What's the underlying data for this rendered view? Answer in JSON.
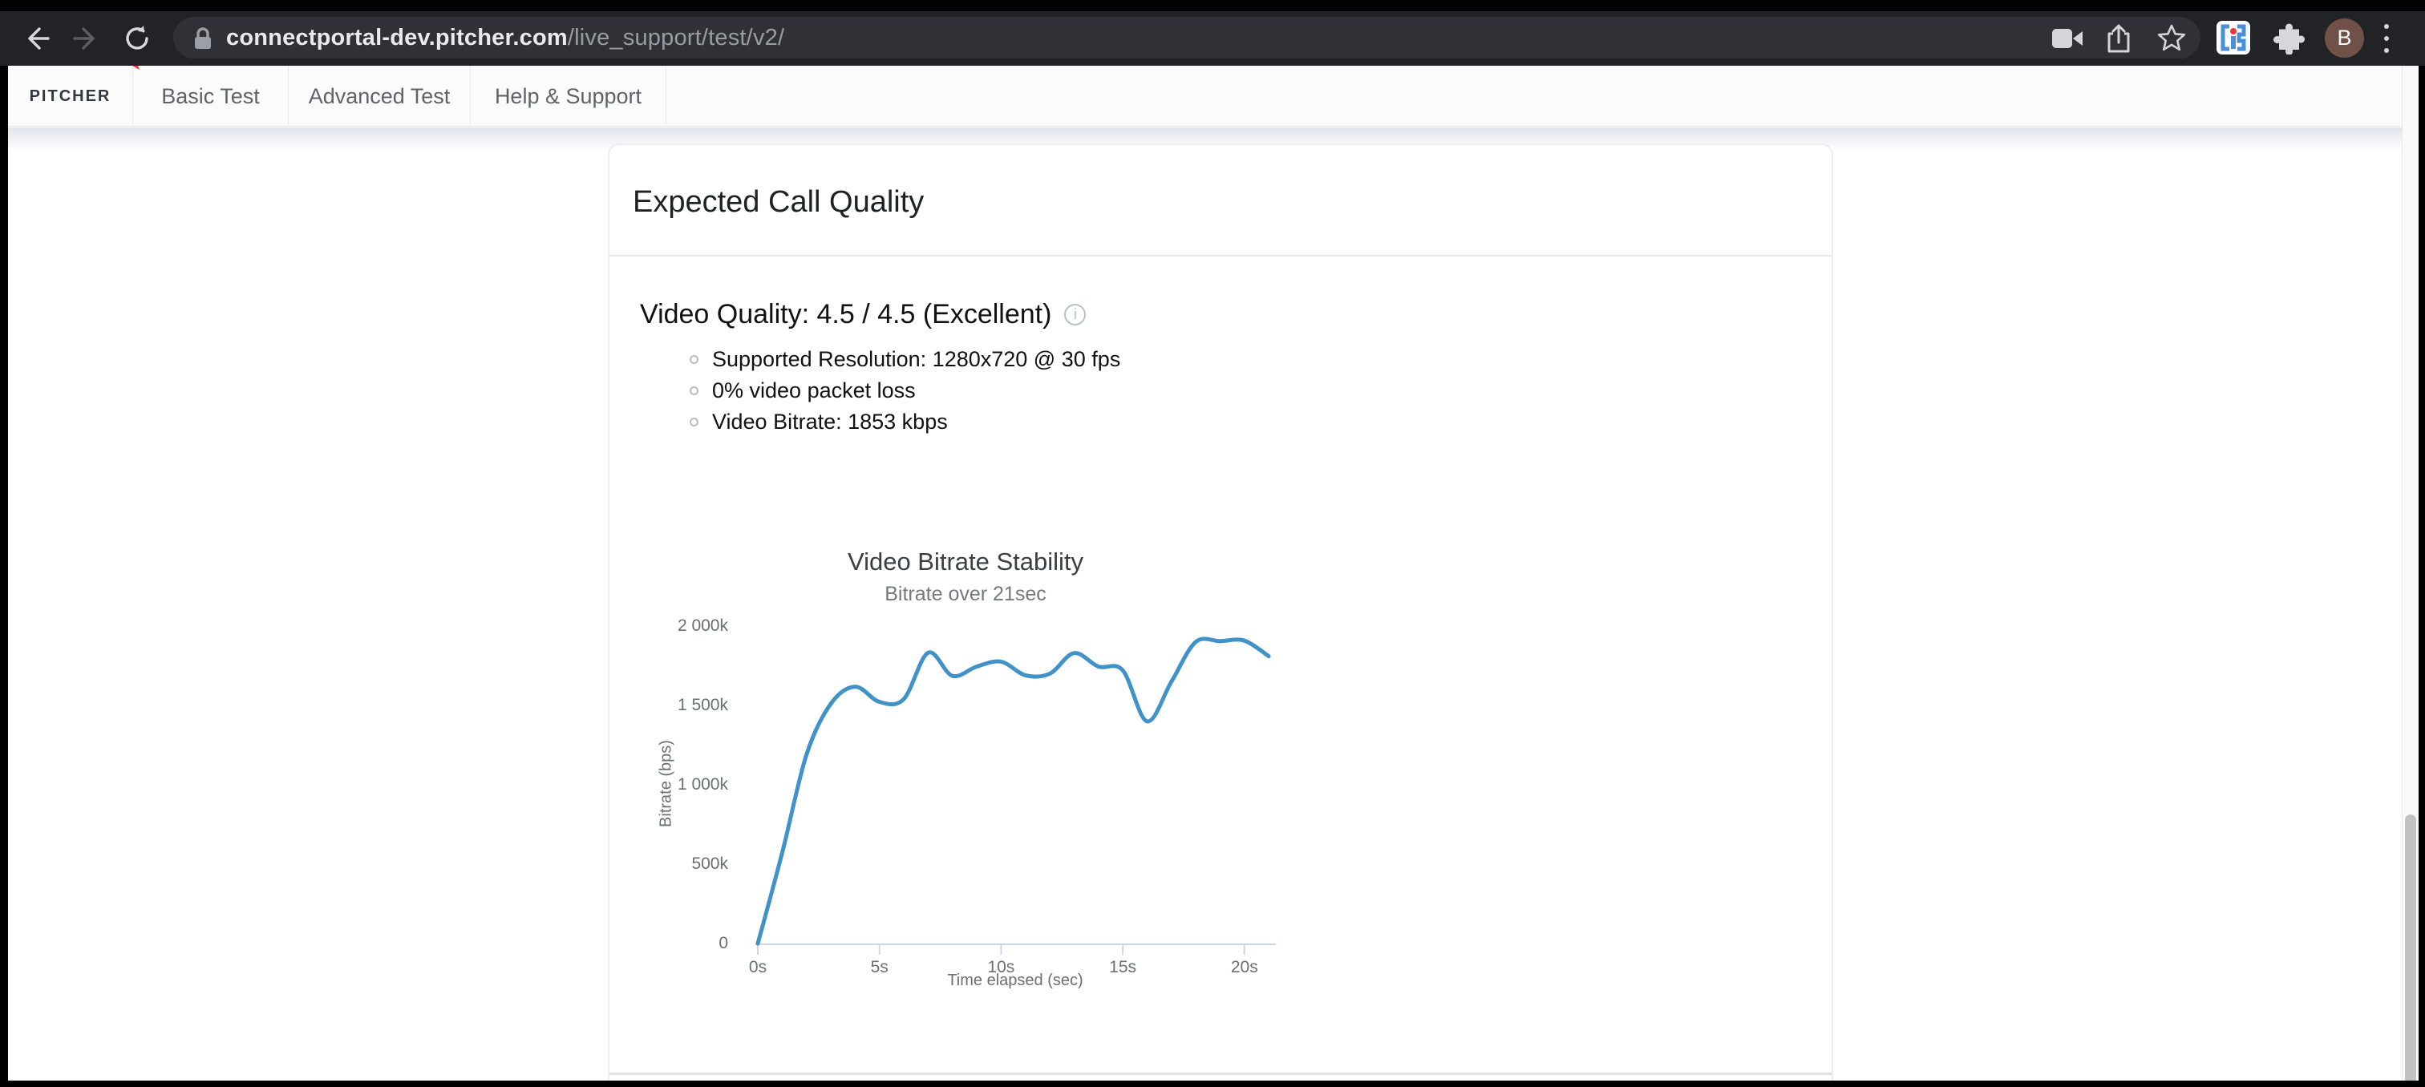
{
  "browser": {
    "url_domain": "connectportal-dev.pitcher.com",
    "url_path": "/live_support/test/v2/",
    "avatar_letter": "B",
    "ext_letters": "iC"
  },
  "nav": {
    "logo_text": "PITCHER",
    "tabs": [
      {
        "label": "Basic Test"
      },
      {
        "label": "Advanced Test"
      },
      {
        "label": "Help & Support"
      }
    ]
  },
  "card": {
    "title": "Expected Call Quality",
    "quality_line": "Video Quality: 4.5 / 4.5 (Excellent)",
    "info_glyph": "i",
    "bullets": [
      "Supported Resolution: 1280x720 @ 30 fps",
      "0% video packet loss",
      "Video Bitrate: 1853 kbps"
    ]
  },
  "chart_data": {
    "type": "line",
    "title": "Video Bitrate Stability",
    "subtitle": "Bitrate over 21sec",
    "xlabel": "Time elapsed (sec)",
    "ylabel": "Bitrate (bps)",
    "x": [
      0,
      1,
      2,
      3,
      4,
      5,
      6,
      7,
      8,
      9,
      10,
      11,
      12,
      13,
      14,
      15,
      16,
      17,
      18,
      19,
      20,
      21
    ],
    "values_kbps": [
      0,
      570,
      1190,
      1510,
      1618,
      1522,
      1540,
      1832,
      1686,
      1745,
      1776,
      1690,
      1700,
      1830,
      1745,
      1721,
      1400,
      1650,
      1900,
      1905,
      1908,
      1810
    ],
    "x_ticks": [
      {
        "v": 0,
        "label": "0s"
      },
      {
        "v": 5,
        "label": "5s"
      },
      {
        "v": 10,
        "label": "10s"
      },
      {
        "v": 15,
        "label": "15s"
      },
      {
        "v": 20,
        "label": "20s"
      }
    ],
    "y_ticks": [
      {
        "v": 0,
        "label": "0"
      },
      {
        "v": 500,
        "label": "500k"
      },
      {
        "v": 1000,
        "label": "1 000k"
      },
      {
        "v": 1500,
        "label": "1 500k"
      },
      {
        "v": 2000,
        "label": "2 000k"
      }
    ],
    "xlim": [
      0,
      21.3
    ],
    "ylim": [
      0,
      2000
    ],
    "grid": false,
    "legend": false,
    "line_color": "#4192c7",
    "axis_color": "#ccd6eb"
  }
}
